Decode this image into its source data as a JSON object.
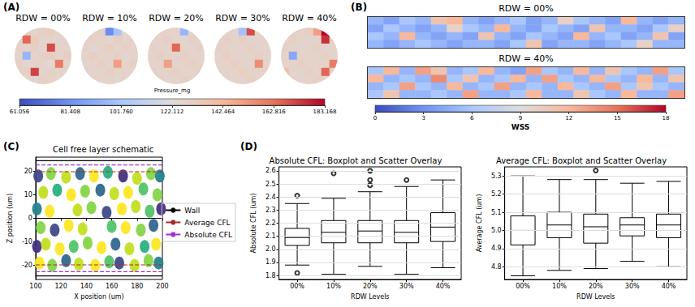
{
  "chart_data": [
    {
      "type": "heatmap",
      "panel_label": "(A)",
      "tick_labels": false,
      "panels": [
        {
          "title": "RDW = 00%",
          "cells": [
            [
              128,
              130,
              127,
              129,
              131,
              128,
              127
            ],
            [
              126,
              165,
              132,
              128,
              127,
              126,
              129
            ],
            [
              129,
              128,
              130,
              126,
              170,
              128,
              127
            ],
            [
              127,
              95,
              128,
              129,
              131,
              127,
              130
            ],
            [
              130,
              126,
              127,
              128,
              125,
              160,
              128
            ],
            [
              128,
              129,
              172,
              127,
              129,
              128,
              126
            ],
            [
              127,
              128,
              126,
              130,
              128,
              127,
              129
            ]
          ]
        },
        {
          "title": "RDW = 10%",
          "cells": [
            [
              128,
              127,
              129,
              80,
              100,
              128,
              127
            ],
            [
              127,
              129,
              128,
              126,
              130,
              128,
              129
            ],
            [
              129,
              126,
              128,
              130,
              127,
              129,
              128
            ],
            [
              128,
              130,
              127,
              128,
              129,
              126,
              127
            ],
            [
              126,
              128,
              129,
              127,
              150,
              128,
              130
            ],
            [
              129,
              127,
              128,
              130,
              128,
              127,
              128
            ],
            [
              128,
              129,
              127,
              128,
              126,
              129,
              127
            ]
          ]
        },
        {
          "title": "RDW = 20%",
          "cells": [
            [
              127,
              129,
              128,
              128,
              95,
              128,
              127
            ],
            [
              128,
              128,
              129,
              127,
              126,
              130,
              128
            ],
            [
              129,
              127,
              128,
              165,
              128,
              127,
              129
            ],
            [
              128,
              130,
              127,
              128,
              129,
              128,
              127
            ],
            [
              127,
              128,
              150,
              127,
              128,
              129,
              128
            ],
            [
              129,
              127,
              128,
              129,
              127,
              128,
              130
            ],
            [
              128,
              129,
              127,
              128,
              130,
              127,
              128
            ]
          ]
        },
        {
          "title": "RDW = 30%",
          "cells": [
            [
              128,
              127,
              128,
              100,
              170,
              128,
              127
            ],
            [
              127,
              129,
              128,
              130,
              127,
              128,
              129
            ],
            [
              129,
              128,
              127,
              128,
              129,
              127,
              128
            ],
            [
              128,
              130,
              128,
              127,
              128,
              129,
              127
            ],
            [
              127,
              128,
              129,
              128,
              127,
              155,
              128
            ],
            [
              129,
              127,
              128,
              130,
              128,
              127,
              129
            ],
            [
              128,
              129,
              127,
              128,
              129,
              128,
              127
            ]
          ]
        },
        {
          "title": "RDW = 40%",
          "cells": [
            [
              128,
              127,
              128,
              130,
              150,
              183,
              128
            ],
            [
              127,
              129,
              128,
              127,
              128,
              175,
              129
            ],
            [
              129,
              128,
              127,
              128,
              129,
              127,
              128
            ],
            [
              128,
              90,
              128,
              127,
              128,
              129,
              127
            ],
            [
              127,
              128,
              129,
              128,
              127,
              128,
              160
            ],
            [
              140,
              127,
              128,
              130,
              128,
              165,
              129
            ],
            [
              128,
              129,
              127,
              128,
              129,
              128,
              127
            ]
          ]
        }
      ],
      "colorbar": {
        "label": "Pressure_mg",
        "range": [
          61.056,
          183.168
        ],
        "ticks": [
          61.056,
          81.408,
          {
            "value": 101.76,
            "label": "101.760"
          },
          122.112,
          142.464,
          162.816,
          183.168
        ]
      }
    },
    {
      "type": "heatmap",
      "panel_label": "(B)",
      "tick_labels": false,
      "panels": [
        {
          "title": "RDW = 00%",
          "cells": [
            [
              5,
              4,
              6,
              5,
              11,
              12,
              5,
              4,
              5,
              6,
              4,
              5,
              10,
              6,
              5,
              4,
              12,
              5,
              4,
              5
            ],
            [
              4,
              6,
              5,
              4,
              5,
              10,
              6,
              5,
              12,
              5,
              4,
              6,
              5,
              4,
              11,
              5,
              5,
              4,
              6,
              10
            ],
            [
              6,
              5,
              12,
              5,
              4,
              5,
              4,
              11,
              5,
              4,
              6,
              5,
              4,
              12,
              5,
              6,
              4,
              5,
              11,
              4
            ],
            [
              5,
              4,
              5,
              6,
              5,
              4,
              5,
              5,
              4,
              6,
              11,
              4,
              5,
              5,
              4,
              5,
              6,
              10,
              5,
              5
            ]
          ]
        },
        {
          "title": "RDW = 40%",
          "cells": [
            [
              6,
              12,
              5,
              13,
              11,
              5,
              6,
              12,
              5,
              4,
              13,
              6,
              5,
              12,
              5,
              11,
              6,
              5,
              13,
              6
            ],
            [
              12,
              5,
              6,
              5,
              14,
              6,
              11,
              5,
              6,
              12,
              5,
              13,
              6,
              5,
              12,
              6,
              5,
              12,
              5,
              11
            ],
            [
              5,
              6,
              13,
              6,
              5,
              12,
              5,
              6,
              13,
              5,
              6,
              5,
              12,
              6,
              5,
              13,
              6,
              11,
              6,
              5
            ],
            [
              6,
              11,
              5,
              5,
              6,
              5,
              13,
              5,
              5,
              6,
              12,
              5,
              5,
              11,
              6,
              5,
              12,
              5,
              5,
              13
            ]
          ]
        }
      ],
      "colorbar": {
        "label": "WSS",
        "range": [
          0,
          18
        ],
        "ticks": [
          0,
          3,
          6,
          9,
          12,
          15,
          18
        ]
      }
    },
    {
      "type": "scatter",
      "panel_label": "(C)",
      "title": "Cell free layer schematic",
      "x_label": "X position (um)",
      "y_label": "Z position (um)",
      "xlim": [
        100,
        200
      ],
      "xticks": [
        100,
        120,
        140,
        160,
        180,
        200
      ],
      "ylim": [
        -26,
        26
      ],
      "yticks": [
        -20,
        -10,
        0,
        10,
        20
      ],
      "grid": false,
      "legend": "right",
      "marker": "ellipse",
      "points": [
        [
          103,
          -19
        ],
        [
          113,
          -20
        ],
        [
          124,
          -18
        ],
        [
          134,
          -19.5
        ],
        [
          147,
          -20
        ],
        [
          158,
          -18.5
        ],
        [
          166,
          -19
        ],
        [
          178,
          -20
        ],
        [
          189,
          -18
        ],
        [
          197,
          -19
        ],
        [
          101,
          -12
        ],
        [
          108,
          -11
        ],
        [
          119,
          -13
        ],
        [
          130,
          -12
        ],
        [
          141,
          -10.5
        ],
        [
          152,
          -12.5
        ],
        [
          163,
          -11
        ],
        [
          174,
          -13
        ],
        [
          186,
          -12
        ],
        [
          195,
          -11
        ],
        [
          104,
          -4
        ],
        [
          115,
          -5
        ],
        [
          126,
          -3
        ],
        [
          137,
          -4.5
        ],
        [
          160,
          -3.5
        ],
        [
          171,
          -4
        ],
        [
          183,
          -5
        ],
        [
          193,
          -3
        ],
        [
          101,
          4
        ],
        [
          111,
          3
        ],
        [
          133,
          3.5
        ],
        [
          144,
          4.5
        ],
        [
          156,
          2.5
        ],
        [
          168,
          4
        ],
        [
          179,
          5
        ],
        [
          190,
          3
        ],
        [
          199,
          4
        ],
        [
          106,
          11
        ],
        [
          117,
          12
        ],
        [
          128,
          10
        ],
        [
          139,
          11.5
        ],
        [
          151,
          12
        ],
        [
          162,
          10.5
        ],
        [
          173,
          11
        ],
        [
          185,
          12.5
        ],
        [
          196,
          10
        ],
        [
          102,
          18
        ],
        [
          112,
          19
        ],
        [
          124,
          17.5
        ],
        [
          135,
          19
        ],
        [
          146,
          18
        ],
        [
          157,
          19.5
        ],
        [
          169,
          18
        ],
        [
          180,
          17
        ],
        [
          191,
          19
        ],
        [
          198,
          18
        ]
      ],
      "colors": [
        "#fde725",
        "#86d549",
        "#31688e",
        "#c2df23",
        "#fde725",
        "#52c569",
        "#3e4a89",
        "#c2df23",
        "#86d549",
        "#26828e",
        "#46327e",
        "#c2df23",
        "#fde725",
        "#52c569",
        "#86d549",
        "#fde725",
        "#31688e",
        "#c2df23",
        "#2ab07f",
        "#fde725",
        "#86d549",
        "#3e4a89",
        "#fde725",
        "#c2df23",
        "#52c569",
        "#fde725",
        "#86d549",
        "#31688e",
        "#26828e",
        "#fde725",
        "#c2df23",
        "#86d549",
        "#3e4a89",
        "#fde725",
        "#c2df23",
        "#52c569",
        "#46327e",
        "#c2df23",
        "#2ab07f",
        "#fde725",
        "#86d549",
        "#31688e",
        "#c2df23",
        "#fde725",
        "#52c569",
        "#86d549",
        "#3e4a89",
        "#86d549",
        "#c2df23",
        "#31688e",
        "#fde725",
        "#2ab07f",
        "#46327e",
        "#c2df23",
        "#86d549",
        "#26828e"
      ],
      "lines": [
        {
          "name": "Wall",
          "color": "#000000",
          "line_style": "solid",
          "values": [
            -24.5,
            24.5
          ]
        },
        {
          "name": "Average CFL",
          "color": "#a52a2a",
          "line_style": "dashed",
          "values": [
            -19.8,
            19.8
          ]
        },
        {
          "name": "Absolute CFL",
          "color": "#9b30d9",
          "line_style": "dashed",
          "values": [
            -22.7,
            22.7
          ]
        }
      ]
    },
    {
      "type": "boxplot",
      "panel_label": "(D)",
      "title": "Absolute CFL: Boxplot and Scatter Overlay",
      "x_label": "RDW Levels",
      "y_label": "Absolute CFL (um)",
      "grid": true,
      "categories": [
        "00%",
        "10%",
        "20%",
        "30%",
        "40%"
      ],
      "ylim": [
        1.77,
        2.63
      ],
      "yticks": [
        1.8,
        1.9,
        {
          "value": 2,
          "label": "2.0"
        },
        2.1,
        2.2,
        2.3,
        2.4,
        2.5,
        2.6
      ],
      "boxes": [
        [
          1.88,
          2.03,
          2.09,
          2.16,
          2.35
        ],
        [
          1.81,
          2.05,
          2.13,
          2.22,
          2.39
        ],
        [
          1.87,
          2.05,
          2.14,
          2.22,
          2.44
        ],
        [
          1.81,
          2.05,
          2.13,
          2.22,
          2.48
        ],
        [
          1.86,
          2.06,
          2.17,
          2.28,
          2.53
        ]
      ],
      "outliers": [
        [
          2.41,
          1.82
        ],
        [
          2.58
        ],
        [
          2.49,
          2.53,
          2.6
        ],
        [
          2.53
        ],
        []
      ]
    },
    {
      "type": "boxplot",
      "title": "Average CFL: Boxplot and Scatter Overlay",
      "x_label": "RDW Levels",
      "y_label": "Average CFL (um)",
      "grid": true,
      "categories": [
        "00%",
        "10%",
        "20%",
        "30%",
        "40%"
      ],
      "ylim": [
        4.73,
        5.35
      ],
      "yticks": [
        4.8,
        4.9,
        {
          "value": 5,
          "label": "5.0"
        },
        5.1,
        5.2,
        5.3
      ],
      "boxes": [
        [
          4.75,
          4.92,
          5.0,
          5.08,
          5.3
        ],
        [
          4.78,
          4.96,
          5.03,
          5.1,
          5.28
        ],
        [
          4.79,
          4.93,
          5.02,
          5.09,
          5.28
        ],
        [
          4.83,
          4.97,
          5.03,
          5.07,
          5.26
        ],
        [
          4.8,
          4.96,
          5.03,
          5.09,
          5.27
        ]
      ],
      "outliers": [
        [],
        [],
        [
          5.33
        ],
        [],
        []
      ]
    }
  ]
}
